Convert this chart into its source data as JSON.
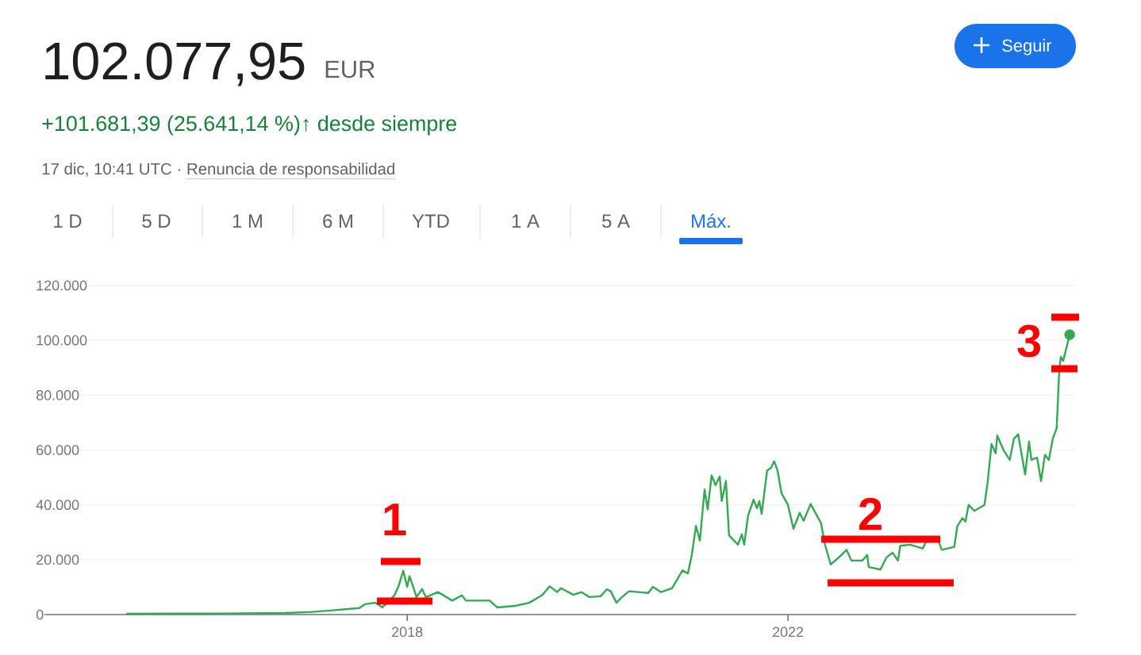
{
  "chart_data": {
    "type": "line",
    "title": "102.077,95",
    "subtitle": "+101.681,39 (25.641,14 %)↑ desde siempre",
    "annotations": [
      "EUR",
      "17 dic, 10:41 UTC ·",
      "Renuncia de responsabilidad",
      "Seguir",
      "1 D",
      "5 D",
      "1 M",
      "6 M",
      "YTD",
      "1 A",
      "5 A",
      "Máx.",
      "1",
      "2",
      "3"
    ],
    "xlim": [
      "2014-02-27",
      "2025-01-10"
    ],
    "xticks": [
      "2018",
      "2022"
    ],
    "ylim": [
      0,
      120000
    ],
    "yticks": [
      0,
      {
        "value": 20000,
        "label": "20.000"
      },
      {
        "value": 40000,
        "label": "40.000"
      },
      {
        "value": 60000,
        "label": "60.000"
      },
      {
        "value": 80000,
        "label": "80.000"
      },
      {
        "value": 100000,
        "label": "100.000"
      },
      {
        "value": 120000,
        "label": "120.000"
      }
    ],
    "grid": "y",
    "series": [
      {
        "color": "#34a853",
        "marker": "none",
        "x": [
          "2015-01-22",
          "2016-01-22",
          "2016-09-22",
          "2016-12-22",
          "2017-03-14",
          "2017-07-02",
          "2017-07-23",
          "2017-09-01",
          "2017-09-28",
          "2017-11-13",
          "2017-11-28",
          "2017-12-17",
          "2018-01-01",
          "2018-01-10",
          "2018-02-06",
          "2018-02-27",
          "2018-03-14",
          "2018-04-29",
          "2018-06-23",
          "2018-07-30",
          "2018-08-14",
          "2018-11-13",
          "2018-12-13",
          "2019-02-21",
          "2019-04-14",
          "2019-06-02",
          "2019-07-02",
          "2019-07-30",
          "2019-08-14",
          "2019-10-01",
          "2019-11-01",
          "2019-12-01",
          "2020-01-13",
          "2020-02-06",
          "2020-02-21",
          "2020-03-14",
          "2020-04-01",
          "2020-05-01",
          "2020-07-14",
          "2020-08-01",
          "2020-09-01",
          "2020-10-13",
          "2020-11-22",
          "2020-12-13",
          "2020-12-28",
          "2021-01-13",
          "2021-01-28",
          "2021-02-15",
          "2021-02-27",
          "2021-03-14",
          "2021-03-29",
          "2021-04-14",
          "2021-04-22",
          "2021-05-08",
          "2021-05-20",
          "2021-06-23",
          "2021-07-08",
          "2021-07-17",
          "2021-08-01",
          "2021-08-22",
          "2021-09-04",
          "2021-09-13",
          "2021-09-22",
          "2021-10-13",
          "2021-10-28",
          "2021-11-09",
          "2021-11-22",
          "2021-12-07",
          "2022-01-01",
          "2022-01-22",
          "2022-02-15",
          "2022-03-02",
          "2022-03-29",
          "2022-04-22",
          "2022-05-08",
          "2022-05-23",
          "2022-06-14",
          "2022-07-14",
          "2022-08-14",
          "2022-09-01",
          "2022-10-13",
          "2022-11-01",
          "2022-11-07",
          "2022-12-22",
          "2023-01-13",
          "2023-02-06",
          "2023-02-27",
          "2023-03-08",
          "2023-04-14",
          "2023-06-02",
          "2023-06-14",
          "2023-08-01",
          "2023-08-14",
          "2023-10-01",
          "2023-10-13",
          "2023-11-01",
          "2023-11-13",
          "2023-11-25",
          "2023-12-17",
          "2024-01-25",
          "2024-02-06",
          "2024-02-21",
          "2024-03-08",
          "2024-03-14",
          "2024-04-08",
          "2024-05-01",
          "2024-05-17",
          "2024-06-02",
          "2024-06-29",
          "2024-07-14",
          "2024-07-23",
          "2024-08-14",
          "2024-08-29",
          "2024-09-13",
          "2024-09-28",
          "2024-10-13",
          "2024-10-28",
          "2024-11-07",
          "2024-11-13",
          "2024-11-22",
          "2024-12-17"
        ],
        "values": [
          300,
          400,
          600,
          900,
          1500,
          2400,
          3800,
          4300,
          2600,
          7000,
          10100,
          16000,
          10100,
          14000,
          6400,
          9300,
          6300,
          8200,
          5100,
          7000,
          5100,
          5100,
          2600,
          3200,
          4300,
          7000,
          10300,
          8200,
          9600,
          7200,
          8200,
          6400,
          6700,
          9200,
          8500,
          4300,
          6100,
          8500,
          7900,
          10100,
          8200,
          9600,
          16100,
          15000,
          21700,
          32300,
          27000,
          45600,
          38300,
          50800,
          47200,
          50400,
          41400,
          48700,
          28900,
          25500,
          29300,
          25500,
          36100,
          41900,
          38800,
          41400,
          36700,
          52500,
          53500,
          55900,
          52500,
          44300,
          40000,
          31300,
          37100,
          34200,
          40300,
          36100,
          33300,
          25500,
          18300,
          20700,
          23600,
          19700,
          19700,
          21700,
          17300,
          16400,
          20700,
          22600,
          19700,
          25100,
          25500,
          24100,
          26500,
          27000,
          23600,
          24700,
          32300,
          35200,
          33900,
          40000,
          37800,
          40000,
          48200,
          62200,
          58800,
          65300,
          59800,
          56400,
          64100,
          65800,
          51100,
          63100,
          56400,
          57200,
          48700,
          58300,
          56400,
          64100,
          68000,
          89100,
          94000,
          92500,
          102078
        ]
      },
      {
        "type": "scatter",
        "color": "#34a853",
        "marker": "circle",
        "x": [
          "2024-12-17"
        ],
        "values": [
          102078
        ]
      }
    ]
  }
}
